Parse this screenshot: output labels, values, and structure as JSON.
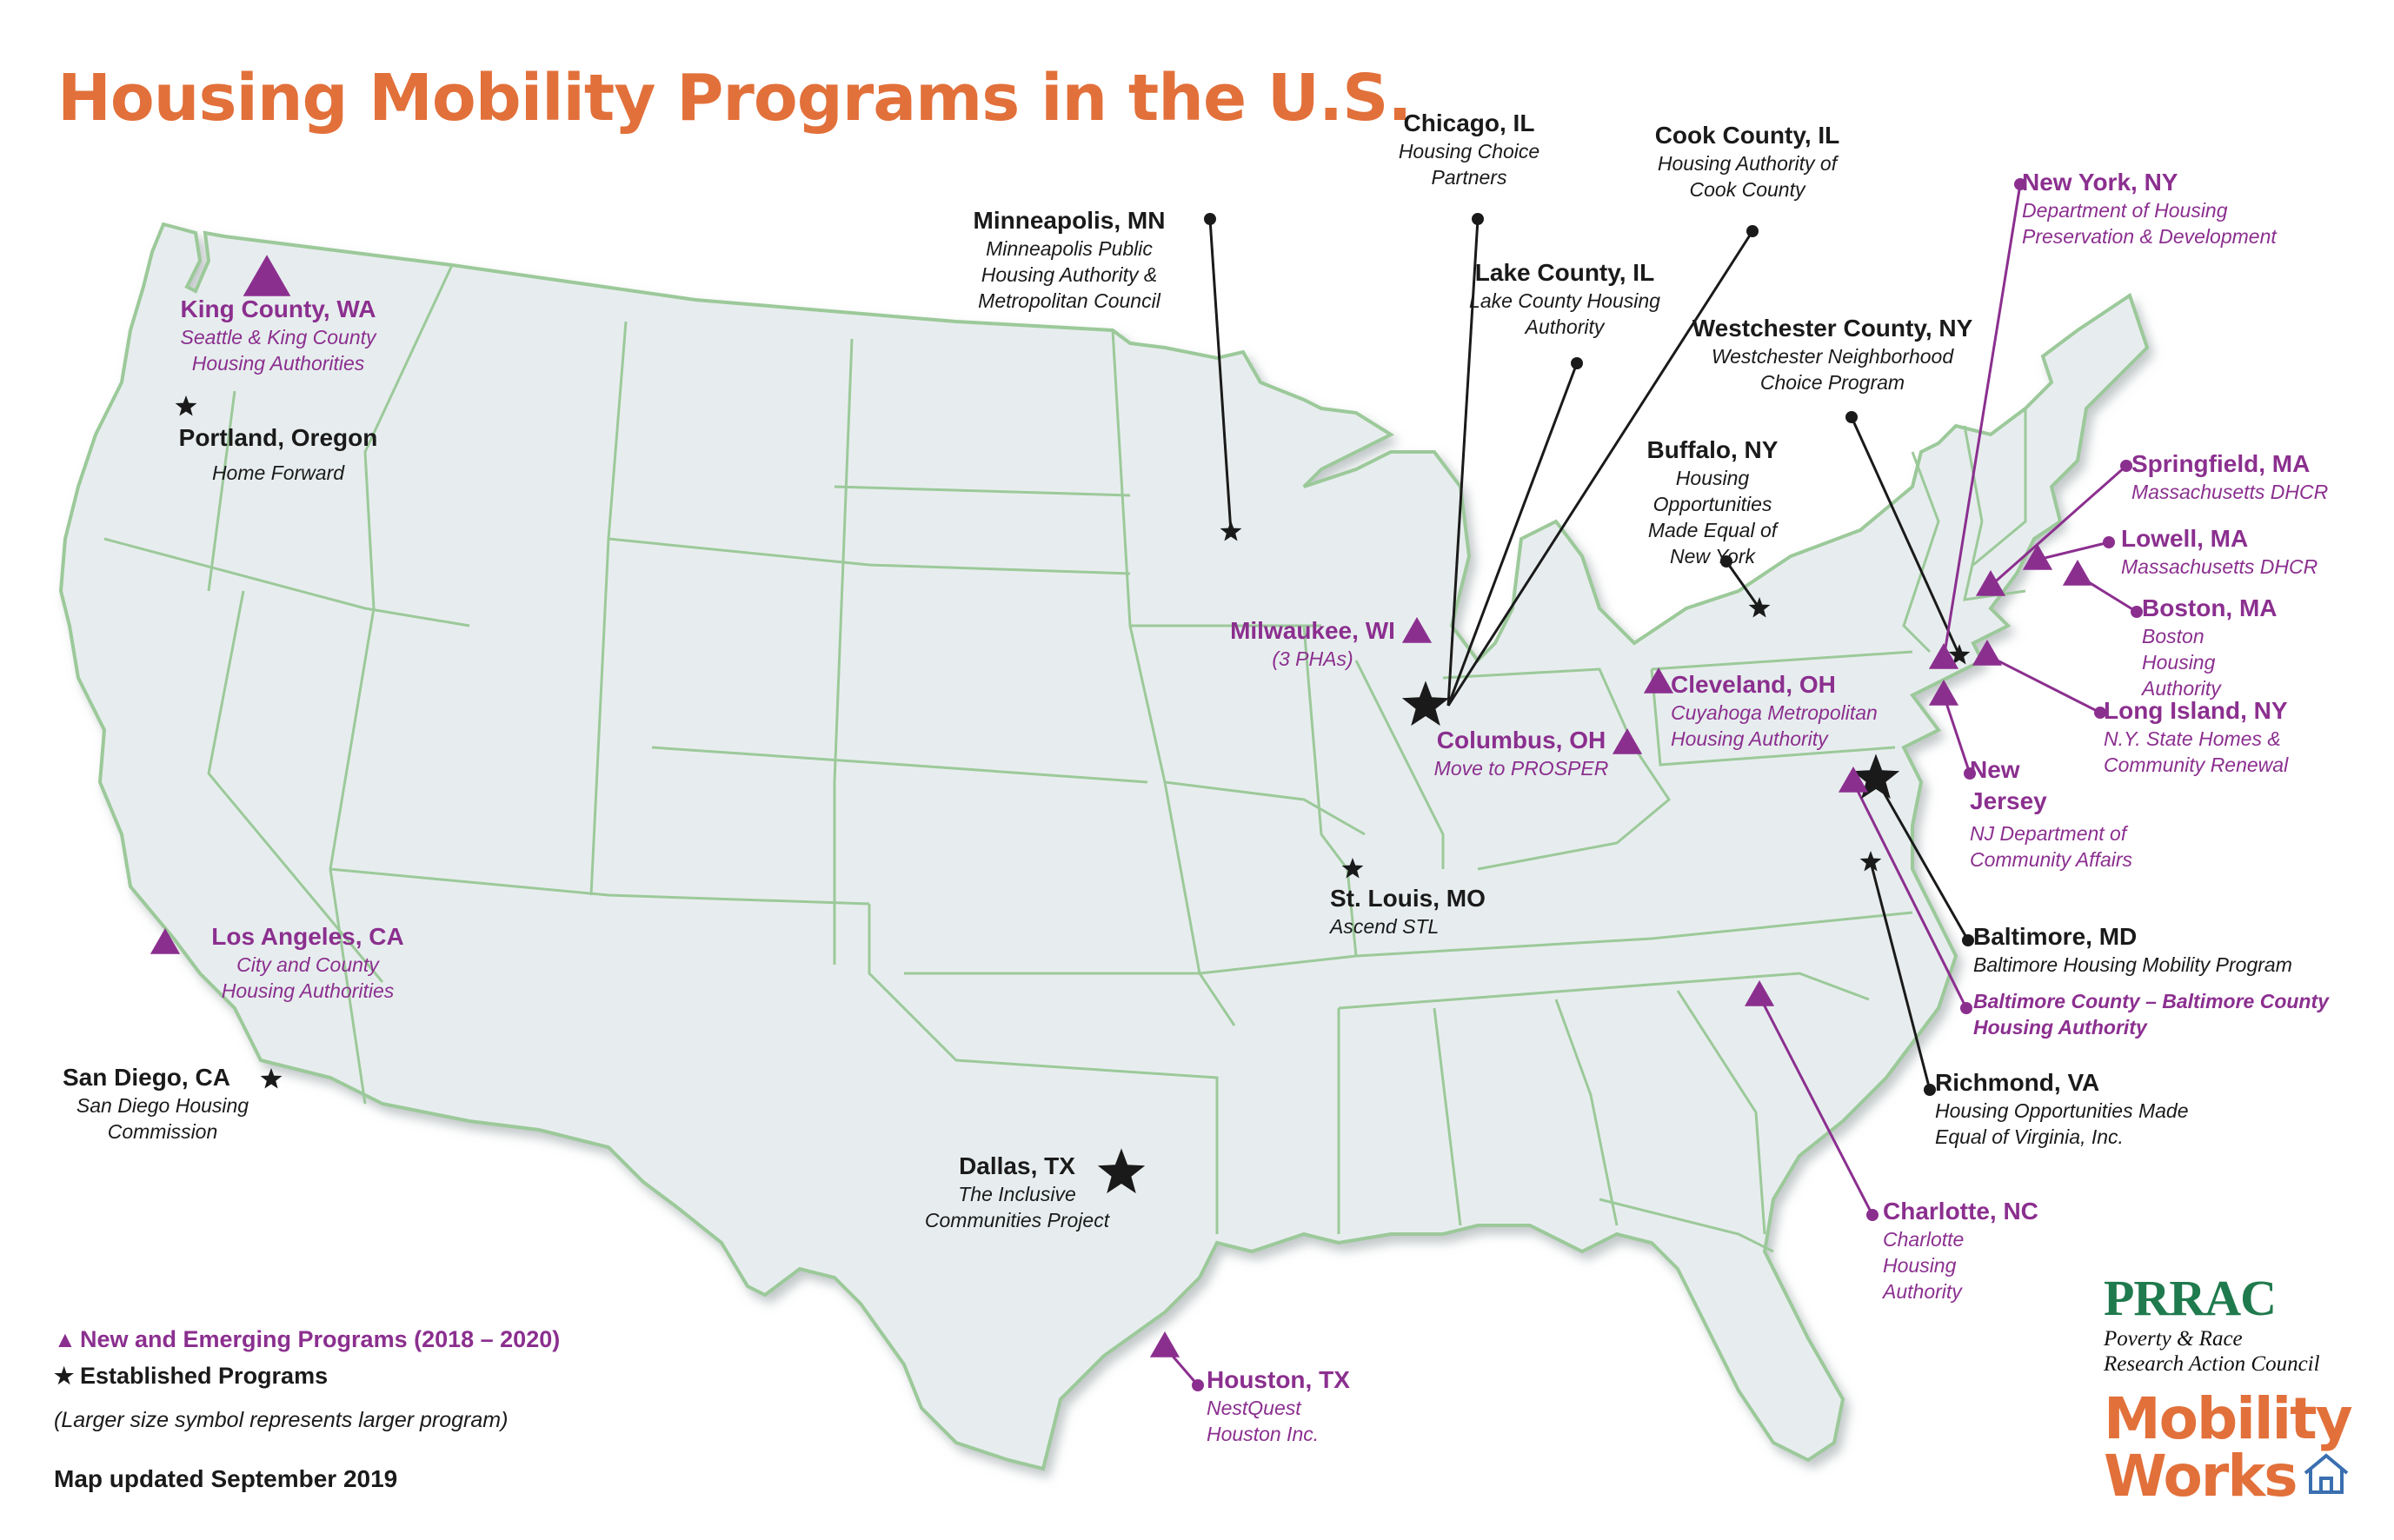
{
  "title": "Housing Mobility Programs in the U.S.",
  "colors": {
    "established": "#1a1a1a",
    "new": "#8b2f8f",
    "title": "#e2703a",
    "map_fill": "#e7edee",
    "map_border": "#9cc99a"
  },
  "markers": [
    {
      "id": "king",
      "icon": "triangle-icon",
      "type": "new"
    },
    {
      "id": "portland",
      "icon": "star-icon",
      "type": "established"
    },
    {
      "id": "minneapolis",
      "icon": "star-icon",
      "type": "established"
    },
    {
      "id": "chicago",
      "icon": "star-icon",
      "type": "established"
    },
    {
      "id": "milwaukee",
      "icon": "triangle-icon",
      "type": "new"
    },
    {
      "id": "cleveland",
      "icon": "triangle-icon",
      "type": "new"
    },
    {
      "id": "columbus",
      "icon": "triangle-icon",
      "type": "new"
    },
    {
      "id": "buffalo",
      "icon": "star-icon",
      "type": "established"
    },
    {
      "id": "westchester",
      "icon": "star-icon",
      "type": "established"
    },
    {
      "id": "newyork",
      "icon": "triangle-icon",
      "type": "new"
    },
    {
      "id": "springfield",
      "icon": "triangle-icon",
      "type": "new"
    },
    {
      "id": "lowell",
      "icon": "triangle-icon",
      "type": "new"
    },
    {
      "id": "boston",
      "icon": "triangle-icon",
      "type": "new"
    },
    {
      "id": "longisland",
      "icon": "triangle-icon",
      "type": "new"
    },
    {
      "id": "newjersey",
      "icon": "triangle-icon",
      "type": "new"
    },
    {
      "id": "baltimore",
      "icon": "star-icon",
      "type": "established"
    },
    {
      "id": "baltcounty",
      "icon": "triangle-icon",
      "type": "new"
    },
    {
      "id": "richmond",
      "icon": "star-icon",
      "type": "established"
    },
    {
      "id": "charlotte",
      "icon": "triangle-icon",
      "type": "new"
    },
    {
      "id": "stlouis",
      "icon": "star-icon",
      "type": "established"
    },
    {
      "id": "losangeles",
      "icon": "triangle-icon",
      "type": "new"
    },
    {
      "id": "sandiego",
      "icon": "star-icon",
      "type": "established"
    },
    {
      "id": "dallas",
      "icon": "star-icon",
      "type": "established"
    },
    {
      "id": "houston",
      "icon": "triangle-icon",
      "type": "new"
    }
  ],
  "labels": {
    "king": {
      "name": "King County, WA",
      "org": "Seattle & King County Housing Authorities"
    },
    "portland": {
      "name": "Portland, Oregon",
      "org": "Home Forward"
    },
    "losangeles": {
      "name": "Los Angeles, CA",
      "org": "City and County Housing Authorities"
    },
    "sandiego": {
      "name": "San Diego, CA",
      "org": "San Diego Housing Commission"
    },
    "minneapolis": {
      "name": "Minneapolis, MN",
      "org": "Minneapolis Public Housing Authority & Metropolitan Council"
    },
    "chicago": {
      "name": "Chicago, IL",
      "org": "Housing Choice Partners"
    },
    "cookcounty": {
      "name": "Cook County, IL",
      "org": "Housing Authority of Cook County"
    },
    "lakecounty": {
      "name": "Lake County, IL",
      "org": "Lake County Housing Authority"
    },
    "milwaukee": {
      "name": "Milwaukee, WI",
      "org": "(3 PHAs)"
    },
    "columbus": {
      "name": "Columbus, OH",
      "org": "Move to PROSPER"
    },
    "cleveland": {
      "name": "Cleveland, OH",
      "org": "Cuyahoga Metropolitan Housing Authority"
    },
    "stlouis": {
      "name": "St. Louis, MO",
      "org": "Ascend STL"
    },
    "dallas": {
      "name": "Dallas, TX",
      "org": "The Inclusive Communities Project"
    },
    "houston": {
      "name": "Houston, TX",
      "org": "NestQuest Houston Inc."
    },
    "westchester": {
      "name": "Westchester County, NY",
      "org": "Westchester Neighborhood Choice Program"
    },
    "buffalo": {
      "name": "Buffalo, NY",
      "org": "Housing Opportunities Made Equal of New York"
    },
    "newyork": {
      "name": "New York, NY",
      "org": "Department of Housing Preservation & Development"
    },
    "springfield": {
      "name": "Springfield, MA",
      "org": "Massachusetts DHCR"
    },
    "lowell": {
      "name": "Lowell, MA",
      "org": "Massachusetts DHCR"
    },
    "boston": {
      "name": "Boston, MA",
      "org": "Boston Housing Authority"
    },
    "longisland": {
      "name": "Long Island, NY",
      "org": "N.Y. State Homes & Community Renewal"
    },
    "newjersey": {
      "name": "New Jersey",
      "org": "NJ Department of Community Affairs"
    },
    "baltimore": {
      "name": "Baltimore, MD",
      "org": "Baltimore Housing Mobility Program"
    },
    "baltcounty": {
      "name": "Baltimore County – Baltimore County",
      "org": "Housing Authority"
    },
    "richmond": {
      "name": "Richmond, VA",
      "org": "Housing Opportunities Made Equal of Virginia, Inc."
    },
    "charlotte": {
      "name": "Charlotte, NC",
      "org": "Charlotte Housing Authority"
    }
  },
  "legend": {
    "new_label": "New and Emerging Programs (2018 – 2020)",
    "established_label": "Established Programs",
    "note": "(Larger size symbol represents larger program)",
    "updated": "Map updated September 2019"
  },
  "logos": {
    "prrac": "PRRAC",
    "prrac_sub1": "Poverty & Race",
    "prrac_sub2": "Research Action Council",
    "mobility1": "Mobility",
    "mobility2": "Works"
  }
}
